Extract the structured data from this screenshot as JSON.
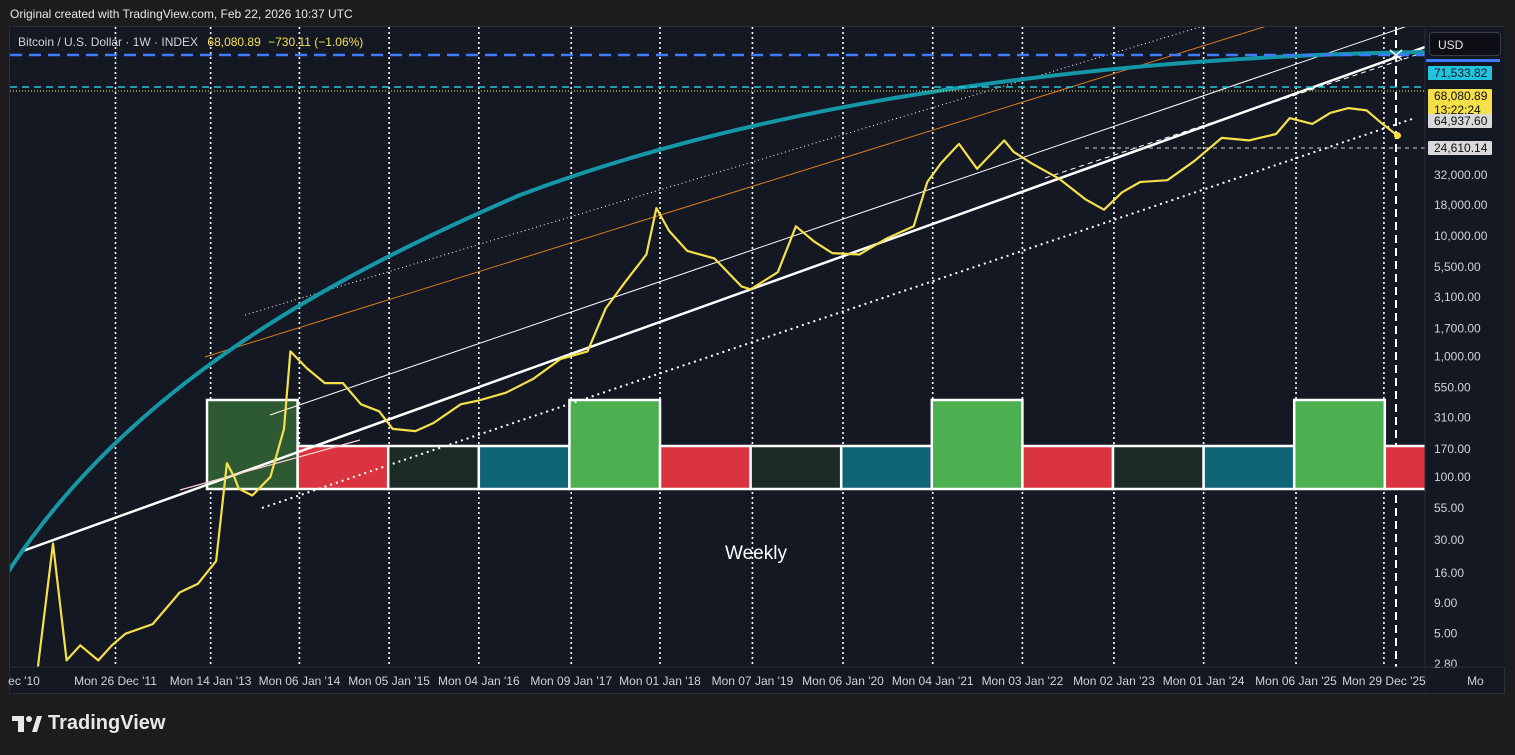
{
  "attribution": "Original created with TradingView.com, Feb 22, 2026 10:37 UTC",
  "legend": {
    "symbol": "Bitcoin / U.S. Dollar · 1W · INDEX",
    "last_price": "68,080.89",
    "change": "−730.11 (−1.06%)"
  },
  "currency_button": "USD",
  "annotation": "Weekly",
  "brand": "TradingView",
  "colors": {
    "background": "#141823",
    "price_line": "#f5e04a",
    "curve": "#1597a8",
    "channel": "#ffffff",
    "orange_line": "#d97d1d",
    "blue_dashed": "#3f7bff",
    "cyan_dashed": "#29c6d9",
    "box_green": "#4caf50",
    "box_red": "#d9343f",
    "box_teal": "#0f6475",
    "box_dark": "#1b2b27"
  },
  "chart_data": {
    "type": "line",
    "scale": "log",
    "interval": "1W",
    "y_tick_labels": [
      "2.80",
      "5.00",
      "9.00",
      "16.00",
      "30.00",
      "55.00",
      "100.00",
      "170.00",
      "310.00",
      "550.00",
      "1,000.00",
      "1,700.00",
      "3,100.00",
      "5,500.00",
      "10,000.00",
      "18,000.00",
      "32,000.00"
    ],
    "y_tick_values": [
      2.8,
      5,
      9,
      16,
      30,
      55,
      100,
      170,
      310,
      550,
      1000,
      1700,
      3100,
      5500,
      10000,
      18000,
      32000
    ],
    "x_tick_labels": [
      "ec '10",
      "Mon 26 Dec '11",
      "Mon 14 Jan '13",
      "Mon 06 Jan '14",
      "Mon 05 Jan '15",
      "Mon 04 Jan '16",
      "Mon 09 Jan '17",
      "Mon 01 Jan '18",
      "Mon 07 Jan '19",
      "Mon 06 Jan '20",
      "Mon 04 Jan '21",
      "Mon 03 Jan '22",
      "Mon 02 Jan '23",
      "Mon 01 Jan '24",
      "Mon 06 Jan '25",
      "Mon 29 Dec '25",
      "Mo"
    ],
    "x_tick_years": [
      2010.98,
      2011.99,
      2013.04,
      2014.02,
      2015.01,
      2016.0,
      2017.02,
      2018.0,
      2019.02,
      2020.02,
      2021.01,
      2022.0,
      2023.01,
      2024.0,
      2025.02,
      2025.99,
      2027.0
    ],
    "price_labels": [
      {
        "label": "71,533.82",
        "value": 71533.82,
        "kind": "cyan"
      },
      {
        "label": "68,080.89",
        "value": 68080.89,
        "kind": "yellow",
        "countdown": "13:22:24"
      },
      {
        "label": "64,937.60",
        "value": 64937.6,
        "kind": "gray"
      },
      {
        "label": "24,610.14",
        "value": 24610.14,
        "kind": "gray"
      }
    ],
    "horizontal_levels": [
      {
        "value": 76500,
        "style": "blue-dashed"
      },
      {
        "value": 71533.82,
        "style": "cyan-dashed"
      },
      {
        "value": 68080.89,
        "style": "yellow-dotted"
      },
      {
        "value": 24610.14,
        "style": "white-dashed"
      }
    ],
    "series": [
      {
        "x": [
          2010.98,
          2011.3,
          2011.45,
          2011.6,
          2011.8,
          2011.95,
          2012.1,
          2012.4,
          2012.7,
          2012.9,
          2013.1,
          2013.22,
          2013.3,
          2013.35,
          2013.5,
          2013.7,
          2013.85,
          2013.92,
          2014.1,
          2014.3,
          2014.5,
          2014.7,
          2014.9,
          2015.05,
          2015.3,
          2015.5,
          2015.8,
          2016.0,
          2016.3,
          2016.6,
          2016.9,
          2017.2,
          2017.4,
          2017.6,
          2017.85,
          2017.96,
          2018.1,
          2018.3,
          2018.6,
          2018.9,
          2019.0,
          2019.3,
          2019.5,
          2019.7,
          2019.9,
          2020.2,
          2020.5,
          2020.8,
          2020.95,
          2021.1,
          2021.3,
          2021.5,
          2021.8,
          2021.9,
          2022.1,
          2022.4,
          2022.7,
          2022.9,
          2023.1,
          2023.3,
          2023.6,
          2023.9,
          2024.2,
          2024.5,
          2024.8,
          2024.95,
          2025.2,
          2025.4,
          2025.6,
          2025.8,
          2025.95,
          2026.14
        ],
        "y": [
          0.3,
          28,
          3,
          4,
          3,
          4,
          5,
          6,
          11,
          13,
          20,
          130,
          100,
          80,
          70,
          100,
          250,
          1100,
          800,
          600,
          600,
          400,
          350,
          250,
          240,
          280,
          400,
          430,
          500,
          650,
          950,
          1100,
          2500,
          4000,
          7000,
          17000,
          11000,
          7500,
          6500,
          3800,
          3600,
          5000,
          12000,
          9000,
          7200,
          7000,
          9500,
          12000,
          28000,
          40000,
          58000,
          36000,
          62000,
          50000,
          40000,
          30000,
          20000,
          16500,
          23000,
          28000,
          29000,
          42000,
          65000,
          62000,
          70000,
          95000,
          85000,
          105000,
          115000,
          110000,
          88000,
          68000
        ]
      }
    ],
    "cycle_boxes": [
      {
        "x0": 2013.0,
        "x1": 2014.0,
        "kind": "green"
      },
      {
        "x0": 2014.0,
        "x1": 2015.0,
        "kind": "red"
      },
      {
        "x0": 2015.0,
        "x1": 2016.0,
        "kind": "dark"
      },
      {
        "x0": 2016.0,
        "x1": 2017.0,
        "kind": "teal"
      },
      {
        "x0": 2017.0,
        "x1": 2018.0,
        "kind": "green"
      },
      {
        "x0": 2018.0,
        "x1": 2019.0,
        "kind": "red"
      },
      {
        "x0": 2019.0,
        "x1": 2020.0,
        "kind": "dark"
      },
      {
        "x0": 2020.0,
        "x1": 2021.0,
        "kind": "teal"
      },
      {
        "x0": 2021.0,
        "x1": 2022.0,
        "kind": "green"
      },
      {
        "x0": 2022.0,
        "x1": 2023.0,
        "kind": "red"
      },
      {
        "x0": 2023.0,
        "x1": 2024.0,
        "kind": "dark"
      },
      {
        "x0": 2024.0,
        "x1": 2025.0,
        "kind": "teal"
      },
      {
        "x0": 2025.0,
        "x1": 2026.0,
        "kind": "green"
      },
      {
        "x0": 2026.0,
        "x1": 2026.75,
        "kind": "red"
      }
    ]
  }
}
